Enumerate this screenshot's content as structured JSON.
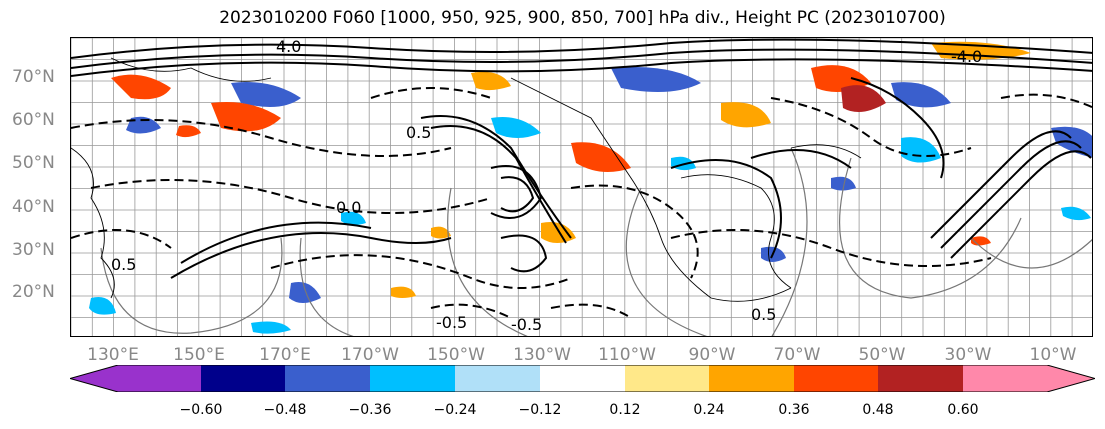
{
  "title": "2023010200 F060 [1000, 950, 925, 900, 850, 700] hPa div., Height PC (2023010700)",
  "lat_labels": [
    "70°N",
    "60°N",
    "50°N",
    "40°N",
    "30°N",
    "20°N"
  ],
  "lon_labels": [
    "130°E",
    "150°E",
    "170°E",
    "170°W",
    "150°W",
    "130°W",
    "110°W",
    "90°W",
    "70°W",
    "50°W",
    "30°W",
    "10°W"
  ],
  "contour_labels": [
    "4.0",
    "-4.0",
    "0.5",
    "0.0",
    "0.5",
    "-0.5",
    "-0.5",
    "0.5"
  ],
  "colorbar": {
    "tick_labels": [
      "−0.60",
      "−0.48",
      "−0.36",
      "−0.24",
      "−0.12",
      "0.12",
      "0.24",
      "0.36",
      "0.48",
      "0.60"
    ],
    "colors": [
      "#9932cc",
      "#00008b",
      "#3a5fcd",
      "#00bfff",
      "#b0e0f8",
      "#ffffff",
      "#ffe889",
      "#ffa500",
      "#ff4500",
      "#b22222",
      "#ff88aa"
    ]
  },
  "fill_colors": {
    "strong_neg": "#3a5fcd",
    "neg": "#00bfff",
    "pos": "#ffa500",
    "strong_pos": "#ff4500"
  }
}
